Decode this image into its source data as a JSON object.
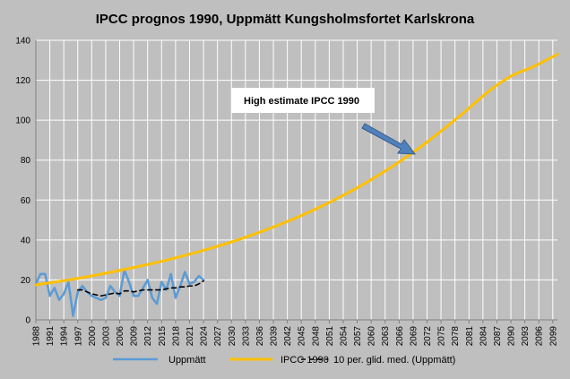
{
  "chart_data": {
    "type": "line",
    "title": "IPCC prognos 1990, Uppmätt Kungsholmsfortet Karlskrona",
    "xlabel": "",
    "ylabel": "",
    "ylim": [
      0,
      140
    ],
    "yticks": [
      0,
      20,
      40,
      60,
      80,
      100,
      120,
      140
    ],
    "xlim": [
      1988,
      2100
    ],
    "xticks": [
      1988,
      1991,
      1994,
      1997,
      2000,
      2003,
      2006,
      2009,
      2012,
      2015,
      2018,
      2021,
      2024,
      2027,
      2030,
      2033,
      2036,
      2039,
      2042,
      2045,
      2048,
      2051,
      2054,
      2057,
      2060,
      2063,
      2066,
      2069,
      2072,
      2075,
      2078,
      2081,
      2084,
      2087,
      2090,
      2093,
      2096,
      2099
    ],
    "grid": true,
    "legend_position": "bottom",
    "colors": {
      "Uppmätt": "#5b9bd5",
      "IPCC 1990": "#ffc000",
      "10 per. glid. med. (Uppmätt)": "#000000",
      "annotation_arrow": "#4f81bd",
      "plot_background": "#bfbfbf",
      "grid": "#ffffff"
    },
    "series": [
      {
        "name": "Uppmätt",
        "style": "solid",
        "x": [
          1988,
          1989,
          1990,
          1991,
          1992,
          1993,
          1994,
          1995,
          1996,
          1997,
          1998,
          1999,
          2000,
          2001,
          2002,
          2003,
          2004,
          2005,
          2006,
          2007,
          2008,
          2009,
          2010,
          2011,
          2012,
          2013,
          2014,
          2015,
          2016,
          2017,
          2018,
          2019,
          2020,
          2021,
          2022,
          2023,
          2024
        ],
        "y": [
          18,
          23,
          23,
          12,
          16,
          10,
          13,
          19,
          2,
          14,
          17,
          14,
          12,
          11,
          10,
          11,
          17,
          14,
          12,
          25,
          19,
          12,
          12,
          16,
          20,
          11,
          8,
          19,
          15,
          23,
          11,
          17,
          24,
          18,
          19,
          22,
          20
        ]
      },
      {
        "name": "IPCC 1990",
        "style": "solid",
        "x": [
          1988,
          1995,
          2000,
          2005,
          2010,
          2015,
          2020,
          2025,
          2030,
          2035,
          2040,
          2045,
          2050,
          2055,
          2060,
          2065,
          2070,
          2075,
          2080,
          2085,
          2090,
          2095,
          2100
        ],
        "y": [
          17.5,
          20,
          22,
          24.3,
          26.7,
          29.3,
          32.3,
          35.5,
          39,
          43,
          47.4,
          52.2,
          57.6,
          63.6,
          70.2,
          77.5,
          85.6,
          94.5,
          104,
          114,
          122,
          127,
          133
        ]
      },
      {
        "name": "10 per. glid. med. (Uppmätt)",
        "style": "dashed",
        "x": [
          1997,
          1998,
          1999,
          2000,
          2001,
          2002,
          2003,
          2004,
          2005,
          2006,
          2007,
          2008,
          2009,
          2010,
          2011,
          2012,
          2013,
          2014,
          2015,
          2016,
          2017,
          2018,
          2019,
          2020,
          2021,
          2022,
          2023,
          2024
        ],
        "y": [
          15,
          15,
          14,
          13,
          12.5,
          12,
          12.5,
          13,
          13.5,
          13,
          14.5,
          14.5,
          14,
          14.5,
          15,
          15,
          15,
          15,
          15,
          15.5,
          16,
          16,
          16.5,
          16.5,
          17,
          17,
          18,
          19.5
        ]
      }
    ],
    "annotation": {
      "text": "High estimate IPCC 1990"
    }
  }
}
